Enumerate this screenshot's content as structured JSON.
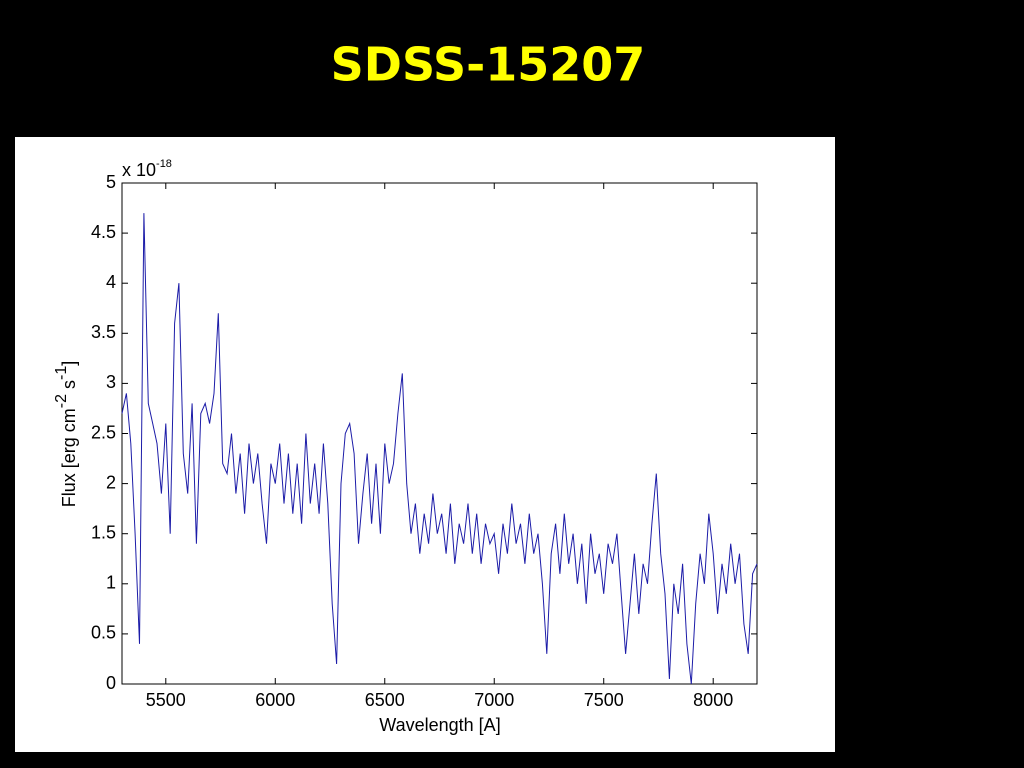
{
  "title": "SDSS-15207",
  "chart_data": {
    "type": "line",
    "xlabel": "Wavelength [A]",
    "ylabel": [
      "Flux [erg cm",
      "-2",
      " s",
      "-1",
      "]"
    ],
    "y_multiplier": {
      "base": "x 10",
      "exponent": "-18"
    },
    "xlim": [
      5300,
      8200
    ],
    "ylim": [
      0,
      5
    ],
    "xticks": [
      5500,
      6000,
      6500,
      7000,
      7500,
      8000
    ],
    "yticks": [
      0,
      0.5,
      1,
      1.5,
      2,
      2.5,
      3,
      3.5,
      4,
      4.5,
      5
    ],
    "grid": false,
    "x": [
      5300,
      5320,
      5340,
      5360,
      5380,
      5400,
      5420,
      5440,
      5460,
      5480,
      5500,
      5520,
      5540,
      5560,
      5580,
      5600,
      5620,
      5640,
      5660,
      5680,
      5700,
      5720,
      5740,
      5760,
      5780,
      5800,
      5820,
      5840,
      5860,
      5880,
      5900,
      5920,
      5940,
      5960,
      5980,
      6000,
      6020,
      6040,
      6060,
      6080,
      6100,
      6120,
      6140,
      6160,
      6180,
      6200,
      6220,
      6240,
      6260,
      6280,
      6300,
      6320,
      6340,
      6360,
      6380,
      6400,
      6420,
      6440,
      6460,
      6480,
      6500,
      6520,
      6540,
      6560,
      6580,
      6600,
      6620,
      6640,
      6660,
      6680,
      6700,
      6720,
      6740,
      6760,
      6780,
      6800,
      6820,
      6840,
      6860,
      6880,
      6900,
      6920,
      6940,
      6960,
      6980,
      7000,
      7020,
      7040,
      7060,
      7080,
      7100,
      7120,
      7140,
      7160,
      7180,
      7200,
      7220,
      7240,
      7260,
      7280,
      7300,
      7320,
      7340,
      7360,
      7380,
      7400,
      7420,
      7440,
      7460,
      7480,
      7500,
      7520,
      7540,
      7560,
      7580,
      7600,
      7620,
      7640,
      7660,
      7680,
      7700,
      7720,
      7740,
      7760,
      7780,
      7800,
      7820,
      7840,
      7860,
      7880,
      7900,
      7920,
      7940,
      7960,
      7980,
      8000,
      8020,
      8040,
      8060,
      8080,
      8100,
      8120,
      8140,
      8160,
      8180,
      8200
    ],
    "series": [
      {
        "color": "#1c1ca8",
        "values": [
          2.7,
          2.9,
          2.4,
          1.5,
          0.4,
          4.7,
          2.8,
          2.6,
          2.4,
          1.9,
          2.6,
          1.5,
          3.6,
          4.0,
          2.3,
          1.9,
          2.8,
          1.4,
          2.7,
          2.8,
          2.6,
          2.9,
          3.7,
          2.2,
          2.1,
          2.5,
          1.9,
          2.3,
          1.7,
          2.4,
          2.0,
          2.3,
          1.8,
          1.4,
          2.2,
          2.0,
          2.4,
          1.8,
          2.3,
          1.7,
          2.2,
          1.6,
          2.5,
          1.8,
          2.2,
          1.7,
          2.4,
          1.8,
          0.8,
          0.2,
          2.0,
          2.5,
          2.6,
          2.3,
          1.4,
          1.9,
          2.3,
          1.6,
          2.2,
          1.5,
          2.4,
          2.0,
          2.2,
          2.7,
          3.1,
          2.0,
          1.5,
          1.8,
          1.3,
          1.7,
          1.4,
          1.9,
          1.5,
          1.7,
          1.3,
          1.8,
          1.2,
          1.6,
          1.4,
          1.8,
          1.3,
          1.7,
          1.2,
          1.6,
          1.4,
          1.5,
          1.1,
          1.6,
          1.3,
          1.8,
          1.4,
          1.6,
          1.2,
          1.7,
          1.3,
          1.5,
          1.0,
          0.3,
          1.3,
          1.6,
          1.1,
          1.7,
          1.2,
          1.5,
          1.0,
          1.4,
          0.8,
          1.5,
          1.1,
          1.3,
          0.9,
          1.4,
          1.2,
          1.5,
          0.9,
          0.3,
          0.8,
          1.3,
          0.7,
          1.2,
          1.0,
          1.6,
          2.1,
          1.3,
          0.9,
          0.05,
          1.0,
          0.7,
          1.2,
          0.4,
          0.0,
          0.8,
          1.3,
          1.0,
          1.7,
          1.3,
          0.7,
          1.2,
          0.9,
          1.4,
          1.0,
          1.3,
          0.6,
          0.3,
          1.1,
          1.2
        ]
      }
    ]
  }
}
